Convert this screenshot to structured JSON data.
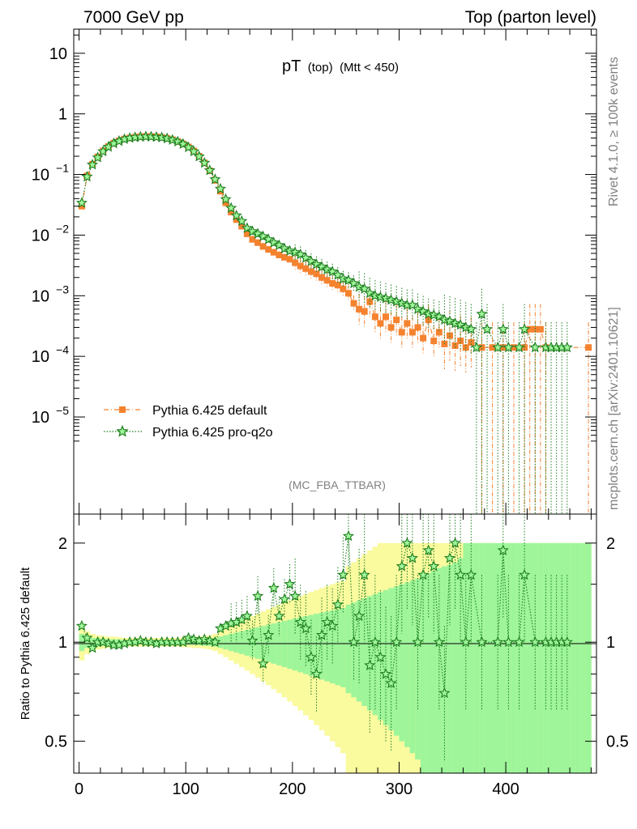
{
  "header": {
    "left": "7000 GeV pp",
    "right": "Top (parton level)"
  },
  "side_labels": {
    "rivet": "Rivet 4.1.0, ≥ 100k events",
    "mcplots": "mcplots.cern.ch [arXiv:2401.10621]"
  },
  "plot_title": {
    "main": "pT",
    "sub1": "(top)",
    "sub2": "(Mtt < 450)"
  },
  "analysis_tag": "(MC_FBA_TTBAR)",
  "colors": {
    "default": "#f5822f",
    "proq2o": "#1e7d1e",
    "band_green": "#9ef59a",
    "band_yellow": "#fafa9e"
  },
  "chart_data": [
    {
      "type": "scatter",
      "title": "pT (top) (Mtt < 450)",
      "xlabel": "",
      "ylabel": "",
      "yscale": "log",
      "xlim": [
        -5,
        485
      ],
      "ylim": [
        2.5e-07,
        25
      ],
      "x_ticks": [
        "0",
        "100",
        "200",
        "300",
        "400"
      ],
      "y_ticks": [
        "10^-5",
        "10^-4",
        "10^-3",
        "10^-2",
        "10^-1",
        "1",
        "10"
      ],
      "legend": [
        "Pythia 6.425 default",
        "Pythia 6.425 pro-q2o"
      ],
      "series": [
        {
          "name": "Pythia 6.425 default",
          "x": [
            2.5,
            7.5,
            12.5,
            17.5,
            22.5,
            27.5,
            32.5,
            37.5,
            42.5,
            47.5,
            52.5,
            57.5,
            62.5,
            67.5,
            72.5,
            77.5,
            82.5,
            87.5,
            92.5,
            97.5,
            102.5,
            107.5,
            112.5,
            117.5,
            122.5,
            127.5,
            132.5,
            137.5,
            142.5,
            147.5,
            152.5,
            157.5,
            162.5,
            167.5,
            172.5,
            177.5,
            182.5,
            187.5,
            192.5,
            197.5,
            202.5,
            207.5,
            212.5,
            217.5,
            222.5,
            227.5,
            232.5,
            237.5,
            242.5,
            247.5,
            252.5,
            257.5,
            262.5,
            267.5,
            272.5,
            277.5,
            282.5,
            287.5,
            292.5,
            297.5,
            302.5,
            307.5,
            312.5,
            317.5,
            322.5,
            327.5,
            332.5,
            337.5,
            342.5,
            347.5,
            352.5,
            357.5,
            362.5,
            367.5,
            377.5,
            387.5,
            397.5,
            407.5,
            417.5,
            422.5,
            427.5,
            432.5,
            437.5,
            477.5
          ],
          "values": [
            0.03,
            0.095,
            0.148,
            0.195,
            0.245,
            0.29,
            0.33,
            0.36,
            0.385,
            0.4,
            0.412,
            0.42,
            0.425,
            0.424,
            0.418,
            0.41,
            0.395,
            0.375,
            0.35,
            0.32,
            0.285,
            0.245,
            0.2,
            0.155,
            0.115,
            0.08,
            0.053,
            0.034,
            0.024,
            0.018,
            0.014,
            0.0105,
            0.0085,
            0.0075,
            0.0065,
            0.0058,
            0.0052,
            0.0047,
            0.0043,
            0.004,
            0.0035,
            0.0031,
            0.0028,
            0.0025,
            0.0023,
            0.002,
            0.0018,
            0.0016,
            0.0015,
            0.0013,
            0.0011,
            0.00075,
            0.0006,
            0.00055,
            0.0008,
            0.00045,
            0.00035,
            0.00045,
            0.0003,
            0.0004,
            0.00025,
            0.00035,
            0.00025,
            0.0003,
            0.0002,
            0.0004,
            0.00018,
            0.00025,
            0.00016,
            0.00022,
            0.00015,
            0.00018,
            0.00014,
            0.00017,
            0.00014,
            0.00014,
            0.00014,
            0.00014,
            0.00014,
            0.00028,
            0.00028,
            0.00028,
            0.00014,
            0.00014
          ]
        },
        {
          "name": "Pythia 6.425 pro-q2o",
          "x": [
            2.5,
            7.5,
            12.5,
            17.5,
            22.5,
            27.5,
            32.5,
            37.5,
            42.5,
            47.5,
            52.5,
            57.5,
            62.5,
            67.5,
            72.5,
            77.5,
            82.5,
            87.5,
            92.5,
            97.5,
            102.5,
            107.5,
            112.5,
            117.5,
            122.5,
            127.5,
            132.5,
            137.5,
            142.5,
            147.5,
            152.5,
            157.5,
            162.5,
            167.5,
            172.5,
            177.5,
            182.5,
            187.5,
            192.5,
            197.5,
            202.5,
            207.5,
            212.5,
            217.5,
            222.5,
            227.5,
            232.5,
            237.5,
            242.5,
            247.5,
            252.5,
            257.5,
            262.5,
            267.5,
            272.5,
            277.5,
            282.5,
            287.5,
            292.5,
            297.5,
            302.5,
            307.5,
            312.5,
            317.5,
            322.5,
            327.5,
            332.5,
            337.5,
            342.5,
            347.5,
            352.5,
            357.5,
            362.5,
            367.5,
            372.5,
            377.5,
            382.5,
            392.5,
            397.5,
            402.5,
            412.5,
            417.5,
            427.5,
            437.5,
            442.5,
            447.5,
            452.5,
            457.5
          ],
          "values": [
            0.034,
            0.092,
            0.145,
            0.19,
            0.24,
            0.285,
            0.325,
            0.355,
            0.382,
            0.4,
            0.41,
            0.418,
            0.422,
            0.42,
            0.415,
            0.407,
            0.392,
            0.372,
            0.348,
            0.318,
            0.28,
            0.24,
            0.198,
            0.155,
            0.117,
            0.083,
            0.058,
            0.039,
            0.028,
            0.021,
            0.017,
            0.013,
            0.0115,
            0.0105,
            0.0095,
            0.0085,
            0.0075,
            0.0068,
            0.006,
            0.0055,
            0.0052,
            0.0048,
            0.0042,
            0.0037,
            0.0033,
            0.003,
            0.0027,
            0.0025,
            0.0022,
            0.0019,
            0.0018,
            0.0016,
            0.0014,
            0.0013,
            0.0011,
            0.001,
            0.00095,
            0.0009,
            0.00085,
            0.0008,
            0.00075,
            0.0007,
            0.0007,
            0.0006,
            0.00055,
            0.0005,
            0.00048,
            0.00045,
            0.0004,
            0.00038,
            0.00035,
            0.00033,
            0.0003,
            0.00028,
            0.00014,
            0.0005,
            0.00028,
            0.00014,
            0.00028,
            0.00014,
            0.00014,
            0.00028,
            0.00014,
            0.00014,
            0.00014,
            0.00014,
            0.00014,
            0.00014
          ]
        }
      ]
    },
    {
      "type": "scatter",
      "title": "",
      "xlabel": "",
      "ylabel": "Ratio to Pythia 6.425 default",
      "yscale": "log",
      "xlim": [
        -5,
        485
      ],
      "ylim": [
        0.4,
        2.45
      ],
      "y_ticks_left": [
        "0.5",
        "1",
        "2"
      ],
      "y_ticks_right": [
        "0.5",
        "1",
        "2"
      ],
      "x_ticks": [
        "0",
        "100",
        "200",
        "300",
        "400"
      ],
      "series": [
        {
          "name": "Pythia 6.425 pro-q2o / default",
          "x": [
            2.5,
            7.5,
            12.5,
            17.5,
            22.5,
            27.5,
            32.5,
            37.5,
            42.5,
            47.5,
            52.5,
            57.5,
            62.5,
            67.5,
            72.5,
            77.5,
            82.5,
            87.5,
            92.5,
            97.5,
            102.5,
            107.5,
            112.5,
            117.5,
            122.5,
            127.5,
            132.5,
            137.5,
            142.5,
            147.5,
            152.5,
            157.5,
            162.5,
            167.5,
            172.5,
            177.5,
            182.5,
            187.5,
            192.5,
            197.5,
            202.5,
            207.5,
            212.5,
            217.5,
            222.5,
            227.5,
            232.5,
            237.5,
            242.5,
            247.5,
            252.5,
            257.5,
            262.5,
            267.5,
            272.5,
            277.5,
            282.5,
            287.5,
            292.5,
            297.5,
            302.5,
            307.5,
            312.5,
            317.5,
            322.5,
            327.5,
            332.5,
            337.5,
            342.5,
            347.5,
            352.5,
            357.5,
            362.5,
            367.5,
            377.5,
            392.5,
            397.5,
            402.5,
            412.5,
            417.5,
            427.5,
            437.5,
            442.5,
            447.5,
            452.5,
            457.5
          ],
          "values": [
            1.12,
            1.03,
            0.96,
            1.0,
            1.0,
            0.99,
            0.98,
            0.98,
            0.99,
            1.0,
            1.0,
            1.01,
            1.0,
            1.0,
            0.99,
            1.0,
            1.0,
            1.0,
            1.0,
            1.0,
            1.03,
            1.02,
            1.01,
            1.02,
            1.01,
            1.0,
            1.1,
            1.12,
            1.14,
            1.15,
            1.17,
            1.2,
            1.01,
            1.38,
            0.86,
            1.05,
            1.46,
            1.2,
            1.35,
            1.5,
            1.38,
            1.15,
            1.1,
            0.9,
            0.8,
            1.05,
            1.15,
            1.12,
            1.3,
            1.6,
            2.1,
            1.0,
            1.2,
            1.6,
            0.85,
            1.0,
            0.9,
            0.8,
            0.75,
            1.0,
            1.7,
            2.0,
            1.8,
            1.0,
            1.6,
            1.9,
            1.7,
            1.0,
            0.7,
            1.8,
            2.0,
            1.6,
            1.0,
            1.6,
            1.0,
            1.0,
            1.9,
            1.0,
            1.0,
            1.6,
            1.0,
            1.0,
            1.0,
            1.0,
            1.0,
            1.0
          ]
        }
      ],
      "bands": {
        "x_edges": [
          0,
          5,
          10,
          15,
          20,
          25,
          30,
          35,
          40,
          45,
          50,
          55,
          60,
          65,
          70,
          75,
          80,
          85,
          90,
          95,
          100,
          105,
          110,
          115,
          120,
          125,
          130,
          135,
          140,
          145,
          150,
          155,
          160,
          165,
          170,
          175,
          180,
          185,
          190,
          195,
          200,
          205,
          210,
          215,
          220,
          225,
          230,
          235,
          240,
          245,
          250,
          255,
          260,
          265,
          270,
          275,
          280,
          285,
          290,
          295,
          300,
          305,
          310,
          315,
          320,
          325,
          330,
          335,
          340,
          345,
          350,
          355,
          360,
          365,
          370,
          375,
          380,
          385,
          390,
          395,
          400,
          405,
          410,
          415,
          420,
          425,
          430,
          435,
          440,
          445,
          450,
          455,
          460,
          465,
          470,
          475,
          480
        ],
        "green_half_width": [
          0.06,
          0.04,
          0.03,
          0.03,
          0.025,
          0.02,
          0.02,
          0.02,
          0.015,
          0.015,
          0.015,
          0.015,
          0.015,
          0.015,
          0.015,
          0.015,
          0.015,
          0.015,
          0.015,
          0.02,
          0.02,
          0.02,
          0.02,
          0.025,
          0.025,
          0.03,
          0.04,
          0.05,
          0.06,
          0.07,
          0.08,
          0.09,
          0.1,
          0.11,
          0.12,
          0.13,
          0.14,
          0.15,
          0.16,
          0.17,
          0.18,
          0.19,
          0.2,
          0.21,
          0.22,
          0.23,
          0.24,
          0.25,
          0.26,
          0.27,
          0.3,
          0.32,
          0.34,
          0.36,
          0.38,
          0.4,
          0.42,
          0.44,
          0.46,
          0.48,
          0.5,
          0.52,
          0.54,
          0.56,
          0.6,
          0.62,
          0.65,
          0.68,
          0.7,
          0.72,
          0.75,
          0.8,
          1.0,
          1.0,
          1.0,
          1.0,
          1.0,
          1.0,
          1.0,
          1.0,
          1.0,
          1.0,
          1.0,
          1.0,
          1.0,
          1.0,
          1.0,
          1.0,
          1.0,
          1.0,
          1.0,
          1.0,
          1.0,
          1.0,
          1.0,
          1.0
        ],
        "yellow_half_width": [
          0.12,
          0.08,
          0.06,
          0.05,
          0.045,
          0.04,
          0.04,
          0.035,
          0.03,
          0.03,
          0.03,
          0.03,
          0.03,
          0.03,
          0.03,
          0.03,
          0.03,
          0.03,
          0.03,
          0.035,
          0.035,
          0.04,
          0.04,
          0.045,
          0.05,
          0.06,
          0.08,
          0.1,
          0.12,
          0.14,
          0.16,
          0.18,
          0.2,
          0.22,
          0.24,
          0.26,
          0.28,
          0.3,
          0.32,
          0.34,
          0.36,
          0.38,
          0.4,
          0.42,
          0.44,
          0.46,
          0.48,
          0.5,
          0.52,
          0.54,
          0.7,
          0.75,
          0.8,
          0.85,
          0.9,
          0.95,
          1.0,
          1.0,
          1.0,
          1.0,
          1.0,
          1.0,
          1.0,
          1.0,
          1.0,
          1.0,
          1.0,
          1.0,
          1.0,
          1.0,
          1.0,
          1.0,
          1.0,
          1.0,
          1.0,
          1.0,
          1.0,
          1.0,
          1.0,
          1.0,
          1.0,
          1.0,
          1.0,
          1.0,
          1.0,
          1.0,
          1.0,
          1.0,
          1.0,
          1.0,
          1.0,
          1.0,
          1.0,
          1.0,
          1.0,
          1.0
        ]
      }
    }
  ]
}
